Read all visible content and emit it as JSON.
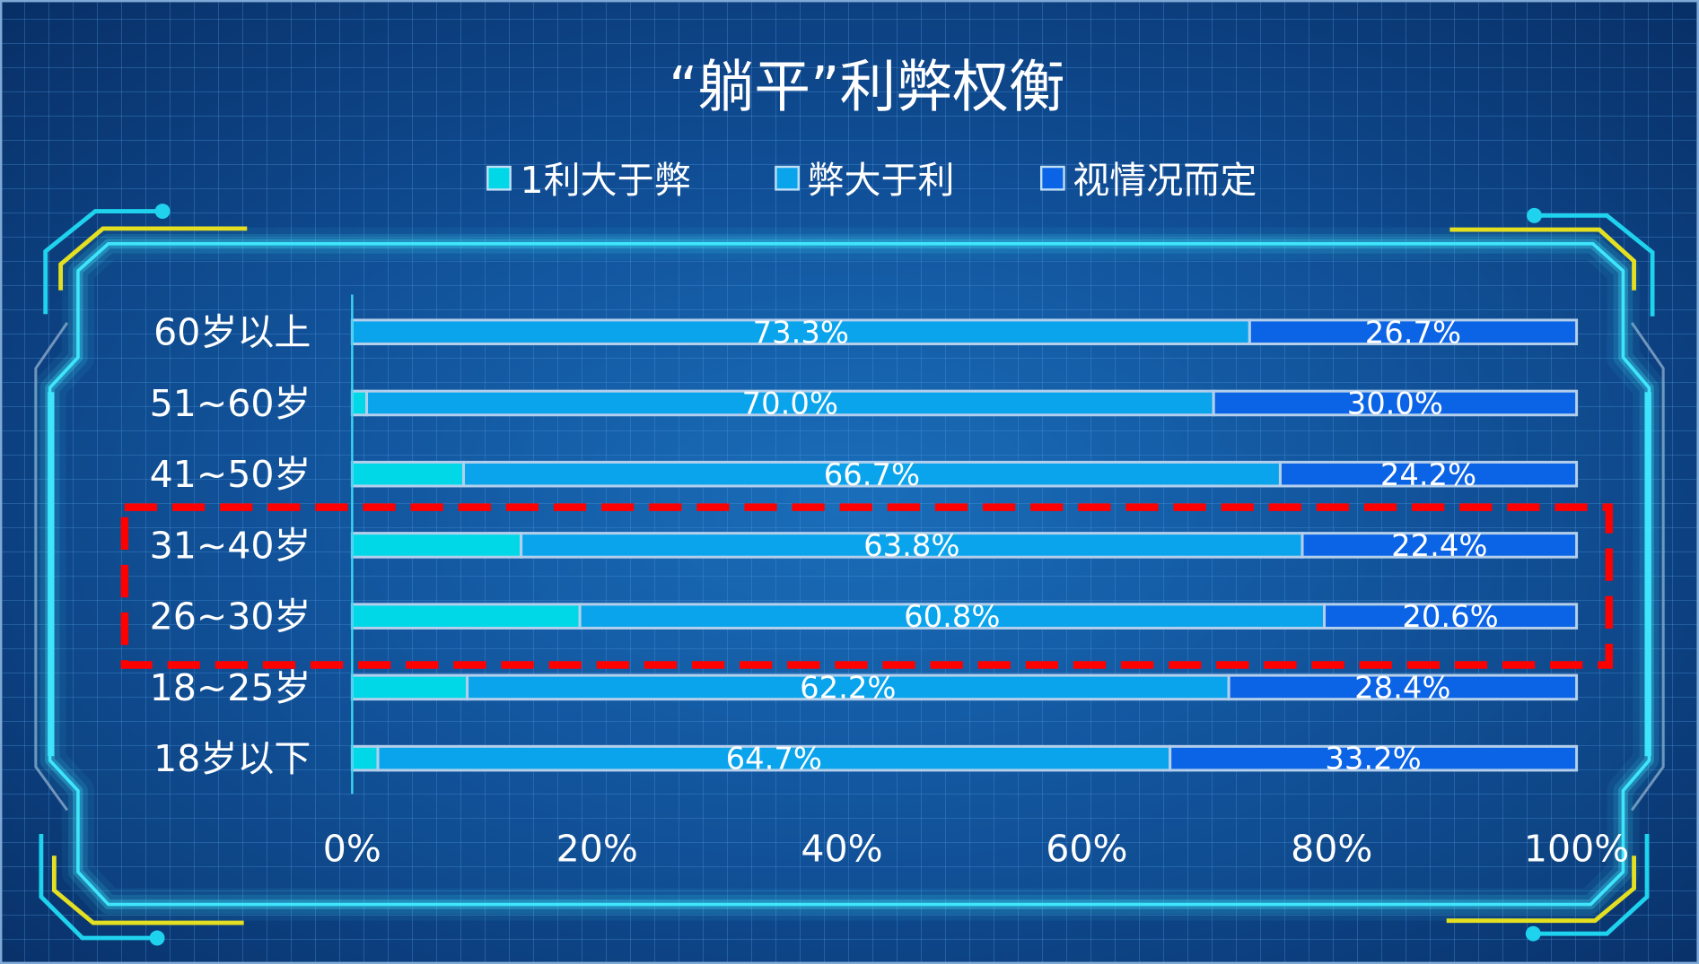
{
  "colors": {
    "background": "#104f97",
    "panel_fill": "#1e78c8",
    "panel_glow": "#3fe6fb",
    "panel_bracket": "#8aa9c9",
    "corner_cyan": "#1fd3ee",
    "corner_yellow": "#e4e021",
    "axis_line": "#3ad8f3",
    "segment_border": "#b3cfec",
    "slide_border": "#7fa9d6",
    "text": "#ffffff"
  },
  "chart_data": {
    "type": "bar",
    "orientation": "horizontal",
    "stacked": "percent",
    "title": "“躺平”利弊权衡",
    "legend": "top",
    "grid": false,
    "categories": [
      "60岁以上",
      "51~60岁",
      "41~50岁",
      "31~40岁",
      "26~30岁",
      "18~25岁",
      "18岁以下"
    ],
    "series": [
      {
        "name": "1利大于弊",
        "color": "#00d8e8",
        "values": [
          0,
          1.2,
          9.1,
          13.8,
          18.6,
          9.4,
          2.1
        ]
      },
      {
        "name": "弊大于利",
        "color": "#0aa4ec",
        "values": [
          73.3,
          70.0,
          66.7,
          63.8,
          60.8,
          62.2,
          64.7
        ],
        "data_labels": [
          "73.3%",
          "70.0%",
          "66.7%",
          "63.8%",
          "60.8%",
          "62.2%",
          "64.7%"
        ]
      },
      {
        "name": "视情况而定",
        "color": "#0b63e5",
        "values": [
          26.7,
          30.0,
          24.2,
          22.4,
          20.6,
          28.4,
          33.2
        ],
        "data_labels": [
          "26.7%",
          "30.0%",
          "24.2%",
          "22.4%",
          "20.6%",
          "28.4%",
          "33.2%"
        ]
      }
    ],
    "x_axis": {
      "range": [
        0,
        100
      ],
      "tick_values": [
        0,
        20,
        40,
        60,
        80,
        100
      ],
      "tick_labels": [
        "0%",
        "20%",
        "40%",
        "60%",
        "80%",
        "100%"
      ]
    },
    "highlight": {
      "rows": [
        3,
        4
      ],
      "color": "#ff0000"
    }
  }
}
